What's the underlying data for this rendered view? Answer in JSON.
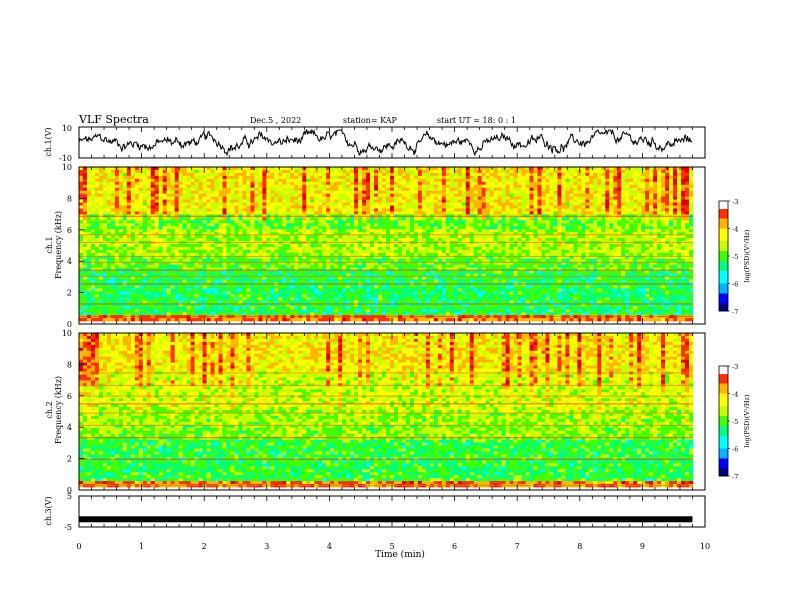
{
  "header": {
    "title": "VLF Spectra",
    "date": "Dec.5 , 2022",
    "station": "station= KAP",
    "start": "start UT = 18: 0 : 1"
  },
  "colors": {
    "colormap": [
      "#000080",
      "#0000ff",
      "#00b4ff",
      "#00ffff",
      "#00ff80",
      "#40ff00",
      "#c8ff00",
      "#ffff00",
      "#ffb400",
      "#ff3000",
      "#e00000",
      "#ffffff"
    ],
    "waveform": "#000000"
  },
  "chart_data": [
    {
      "type": "line",
      "name": "ch1-waveform",
      "ylabel": "ch.1(V)",
      "ylim": [
        -10,
        10
      ],
      "yticks": [
        "10",
        "-10"
      ],
      "xlim": [
        0,
        10
      ],
      "description_values": "noisy waveform fluctuating mostly between about -6 and +6 V"
    },
    {
      "type": "heatmap",
      "name": "ch1-spectrogram",
      "ylabel": "ch.1 Frequency (kHz)",
      "ylabel_line1": "ch.1",
      "ylabel_line2": "Frequency (kHz)",
      "ylim": [
        0,
        10
      ],
      "yticks": [
        "0",
        "2",
        "4",
        "6",
        "8",
        "10"
      ],
      "xlim": [
        0,
        9.8
      ],
      "colorbar": {
        "label": "log(PSD)(V²/Hz)",
        "range": [
          -7,
          -3
        ],
        "ticks": [
          "-3",
          "-4",
          "-5",
          "-6",
          "-7"
        ]
      },
      "bright_lines_khz": [
        0.3,
        1.1,
        2.4,
        2.9,
        3.3,
        3.8,
        4.2,
        5.1,
        5.6,
        6.8
      ]
    },
    {
      "type": "heatmap",
      "name": "ch2-spectrogram",
      "ylabel": "ch.2 Frequency (kHz)",
      "ylabel_line1": "ch.2",
      "ylabel_line2": "Frequency (kHz)",
      "ylim": [
        0,
        10
      ],
      "yticks": [
        "0",
        "2",
        "4",
        "6",
        "8",
        "10"
      ],
      "xlim": [
        0,
        9.8
      ],
      "colorbar": {
        "label": "log(PSD)(V²/Hz)",
        "range": [
          -7,
          -3
        ],
        "ticks": [
          "-3",
          "-4",
          "-5",
          "-6",
          "-7"
        ]
      },
      "bright_lines_khz": [
        0.1,
        1.8,
        3.2,
        4.0,
        4.8,
        5.4,
        5.9,
        6.6,
        7.4
      ]
    },
    {
      "type": "line",
      "name": "ch3-signal",
      "ylabel": "ch.3(V)",
      "ylim": [
        -5,
        5
      ],
      "yticks": [
        "5",
        "-5"
      ],
      "xlim": [
        0,
        10
      ],
      "level_v": -2.5,
      "xlabel": "Time (min)",
      "xticks": [
        "0",
        "1",
        "2",
        "3",
        "4",
        "5",
        "6",
        "7",
        "8",
        "9",
        "10"
      ]
    }
  ]
}
